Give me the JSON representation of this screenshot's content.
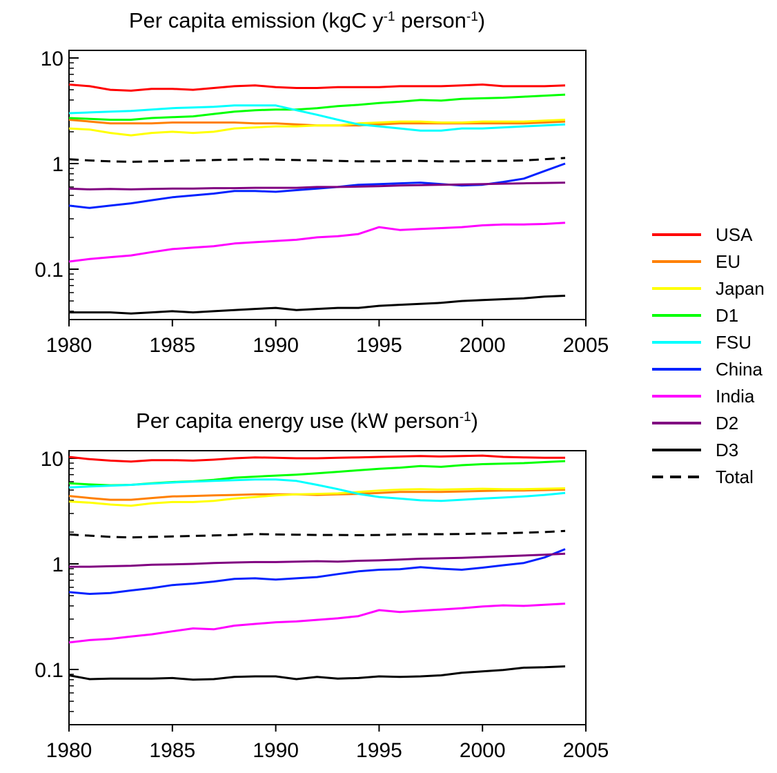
{
  "chart_data": [
    {
      "type": "line",
      "title_prefix": "Per capita emission (kgC y",
      "title_sup1": "-1",
      "title_mid": " person",
      "title_sup2": "-1",
      "title_suffix": ")",
      "y_scale": "log",
      "xlim": [
        1980,
        2005
      ],
      "ylim": [
        0.03,
        12
      ],
      "x_ticks": [
        "1980",
        "1985",
        "1990",
        "1995",
        "2000",
        "2005"
      ],
      "y_ticks": [
        "10",
        "1",
        "0.1"
      ],
      "grid": false,
      "x": [
        1980,
        1981,
        1982,
        1983,
        1984,
        1985,
        1986,
        1987,
        1988,
        1989,
        1990,
        1991,
        1992,
        1993,
        1994,
        1995,
        1996,
        1997,
        1998,
        1999,
        2000,
        2001,
        2002,
        2003,
        2004
      ],
      "series": [
        {
          "name": "USA",
          "color": "#ff0000",
          "dash": false,
          "values": [
            5.6,
            5.4,
            5.0,
            4.9,
            5.1,
            5.1,
            5.0,
            5.2,
            5.4,
            5.5,
            5.3,
            5.2,
            5.2,
            5.3,
            5.3,
            5.3,
            5.4,
            5.4,
            5.4,
            5.5,
            5.6,
            5.4,
            5.4,
            5.4,
            5.5
          ]
        },
        {
          "name": "EU",
          "color": "#ff8000",
          "dash": false,
          "values": [
            2.6,
            2.5,
            2.4,
            2.4,
            2.4,
            2.45,
            2.45,
            2.45,
            2.45,
            2.4,
            2.4,
            2.35,
            2.3,
            2.3,
            2.3,
            2.35,
            2.4,
            2.4,
            2.4,
            2.4,
            2.4,
            2.4,
            2.4,
            2.45,
            2.5
          ]
        },
        {
          "name": "Japan",
          "color": "#ffff00",
          "dash": false,
          "values": [
            2.15,
            2.1,
            1.95,
            1.85,
            1.95,
            2.0,
            1.95,
            2.0,
            2.15,
            2.2,
            2.25,
            2.25,
            2.3,
            2.3,
            2.4,
            2.45,
            2.5,
            2.5,
            2.45,
            2.45,
            2.5,
            2.5,
            2.5,
            2.55,
            2.6
          ]
        },
        {
          "name": "D1",
          "color": "#00ff00",
          "dash": false,
          "values": [
            2.7,
            2.65,
            2.6,
            2.6,
            2.7,
            2.75,
            2.8,
            2.95,
            3.1,
            3.2,
            3.25,
            3.25,
            3.35,
            3.5,
            3.6,
            3.75,
            3.85,
            4.0,
            3.95,
            4.1,
            4.15,
            4.2,
            4.3,
            4.4,
            4.5
          ]
        },
        {
          "name": "FSU",
          "color": "#00ffff",
          "dash": false,
          "values": [
            3.0,
            3.05,
            3.1,
            3.15,
            3.25,
            3.35,
            3.4,
            3.45,
            3.55,
            3.55,
            3.55,
            3.2,
            2.9,
            2.6,
            2.35,
            2.25,
            2.15,
            2.05,
            2.05,
            2.15,
            2.15,
            2.2,
            2.25,
            2.3,
            2.35
          ]
        },
        {
          "name": "China",
          "color": "#0022ff",
          "dash": false,
          "values": [
            0.4,
            0.38,
            0.4,
            0.42,
            0.45,
            0.48,
            0.5,
            0.52,
            0.55,
            0.55,
            0.54,
            0.56,
            0.58,
            0.6,
            0.63,
            0.64,
            0.65,
            0.66,
            0.64,
            0.62,
            0.63,
            0.67,
            0.72,
            0.85,
            1.0
          ]
        },
        {
          "name": "India",
          "color": "#ff00ff",
          "dash": false,
          "values": [
            0.118,
            0.125,
            0.13,
            0.135,
            0.145,
            0.155,
            0.16,
            0.165,
            0.175,
            0.18,
            0.185,
            0.19,
            0.2,
            0.205,
            0.215,
            0.25,
            0.235,
            0.24,
            0.245,
            0.25,
            0.26,
            0.265,
            0.265,
            0.268,
            0.275
          ]
        },
        {
          "name": "D2",
          "color": "#800080",
          "dash": false,
          "values": [
            0.58,
            0.57,
            0.575,
            0.57,
            0.575,
            0.58,
            0.58,
            0.585,
            0.585,
            0.59,
            0.59,
            0.59,
            0.6,
            0.6,
            0.605,
            0.61,
            0.62,
            0.625,
            0.63,
            0.635,
            0.64,
            0.645,
            0.65,
            0.655,
            0.66
          ]
        },
        {
          "name": "D3",
          "color": "#000000",
          "dash": false,
          "values": [
            0.039,
            0.039,
            0.039,
            0.038,
            0.039,
            0.04,
            0.039,
            0.04,
            0.041,
            0.042,
            0.043,
            0.041,
            0.042,
            0.043,
            0.043,
            0.045,
            0.046,
            0.047,
            0.048,
            0.05,
            0.051,
            0.052,
            0.053,
            0.055,
            0.056
          ]
        },
        {
          "name": "Total",
          "color": "#000000",
          "dash": true,
          "values": [
            1.1,
            1.07,
            1.05,
            1.04,
            1.05,
            1.06,
            1.07,
            1.08,
            1.09,
            1.1,
            1.09,
            1.08,
            1.07,
            1.06,
            1.05,
            1.05,
            1.06,
            1.06,
            1.05,
            1.05,
            1.06,
            1.06,
            1.07,
            1.1,
            1.13
          ]
        }
      ]
    },
    {
      "type": "line",
      "title_prefix": "Per capita energy use (kW person",
      "title_sup1": "-1",
      "title_mid": "",
      "title_sup2": "",
      "title_suffix": ")",
      "y_scale": "log",
      "xlim": [
        1980,
        2005
      ],
      "ylim": [
        0.03,
        12
      ],
      "x_ticks": [
        "1980",
        "1985",
        "1990",
        "1995",
        "2000",
        "2005"
      ],
      "y_ticks": [
        "10",
        "1",
        "0.1"
      ],
      "grid": false,
      "x": [
        1980,
        1981,
        1982,
        1983,
        1984,
        1985,
        1986,
        1987,
        1988,
        1989,
        1990,
        1991,
        1992,
        1993,
        1994,
        1995,
        1996,
        1997,
        1998,
        1999,
        2000,
        2001,
        2002,
        2003,
        2004
      ],
      "series": [
        {
          "name": "USA",
          "color": "#ff0000",
          "dash": false,
          "values": [
            10.3,
            9.8,
            9.5,
            9.3,
            9.6,
            9.6,
            9.5,
            9.7,
            10.0,
            10.2,
            10.1,
            10.0,
            10.0,
            10.1,
            10.2,
            10.3,
            10.4,
            10.5,
            10.4,
            10.5,
            10.6,
            10.3,
            10.2,
            10.1,
            10.1
          ]
        },
        {
          "name": "EU",
          "color": "#ff8000",
          "dash": false,
          "values": [
            4.4,
            4.2,
            4.05,
            4.05,
            4.2,
            4.35,
            4.4,
            4.45,
            4.5,
            4.55,
            4.55,
            4.55,
            4.5,
            4.55,
            4.6,
            4.7,
            4.8,
            4.8,
            4.8,
            4.85,
            4.9,
            4.95,
            4.95,
            5.0,
            5.05
          ]
        },
        {
          "name": "Japan",
          "color": "#ffff00",
          "dash": false,
          "values": [
            3.9,
            3.8,
            3.65,
            3.55,
            3.75,
            3.85,
            3.85,
            3.95,
            4.15,
            4.3,
            4.45,
            4.55,
            4.6,
            4.65,
            4.8,
            4.95,
            5.05,
            5.1,
            5.05,
            5.1,
            5.15,
            5.1,
            5.1,
            5.15,
            5.2
          ]
        },
        {
          "name": "D1",
          "color": "#00ff00",
          "dash": false,
          "values": [
            5.8,
            5.65,
            5.55,
            5.6,
            5.8,
            5.95,
            6.05,
            6.25,
            6.55,
            6.7,
            6.85,
            7.0,
            7.2,
            7.45,
            7.7,
            7.95,
            8.15,
            8.45,
            8.3,
            8.6,
            8.8,
            8.9,
            9.0,
            9.2,
            9.4
          ]
        },
        {
          "name": "FSU",
          "color": "#00ffff",
          "dash": false,
          "values": [
            5.3,
            5.4,
            5.5,
            5.6,
            5.75,
            5.9,
            6.0,
            6.1,
            6.2,
            6.3,
            6.3,
            6.1,
            5.6,
            5.1,
            4.6,
            4.3,
            4.15,
            4.0,
            3.95,
            4.05,
            4.15,
            4.25,
            4.35,
            4.5,
            4.7
          ]
        },
        {
          "name": "China",
          "color": "#0022ff",
          "dash": false,
          "values": [
            0.54,
            0.52,
            0.53,
            0.56,
            0.59,
            0.63,
            0.65,
            0.68,
            0.72,
            0.73,
            0.71,
            0.73,
            0.75,
            0.8,
            0.85,
            0.88,
            0.89,
            0.93,
            0.9,
            0.88,
            0.92,
            0.97,
            1.02,
            1.15,
            1.38
          ]
        },
        {
          "name": "India",
          "color": "#ff00ff",
          "dash": false,
          "values": [
            0.18,
            0.19,
            0.195,
            0.205,
            0.215,
            0.23,
            0.245,
            0.24,
            0.26,
            0.27,
            0.28,
            0.285,
            0.295,
            0.305,
            0.32,
            0.365,
            0.35,
            0.36,
            0.37,
            0.38,
            0.395,
            0.405,
            0.4,
            0.41,
            0.42
          ]
        },
        {
          "name": "D2",
          "color": "#800080",
          "dash": false,
          "values": [
            0.94,
            0.94,
            0.95,
            0.96,
            0.98,
            0.99,
            1.0,
            1.02,
            1.03,
            1.04,
            1.04,
            1.05,
            1.06,
            1.05,
            1.07,
            1.08,
            1.1,
            1.12,
            1.13,
            1.14,
            1.16,
            1.18,
            1.2,
            1.22,
            1.25
          ]
        },
        {
          "name": "D3",
          "color": "#000000",
          "dash": false,
          "values": [
            0.088,
            0.081,
            0.082,
            0.082,
            0.082,
            0.083,
            0.08,
            0.081,
            0.085,
            0.086,
            0.086,
            0.081,
            0.085,
            0.082,
            0.083,
            0.086,
            0.085,
            0.086,
            0.088,
            0.093,
            0.096,
            0.099,
            0.104,
            0.105,
            0.107
          ]
        },
        {
          "name": "Total",
          "color": "#000000",
          "dash": true,
          "values": [
            1.9,
            1.85,
            1.8,
            1.78,
            1.8,
            1.82,
            1.84,
            1.86,
            1.88,
            1.92,
            1.9,
            1.89,
            1.88,
            1.88,
            1.87,
            1.88,
            1.9,
            1.91,
            1.91,
            1.92,
            1.94,
            1.95,
            1.97,
            2.0,
            2.05
          ]
        }
      ]
    }
  ],
  "legend": [
    {
      "label": "USA",
      "color": "#ff0000",
      "dash": false
    },
    {
      "label": "EU",
      "color": "#ff8000",
      "dash": false
    },
    {
      "label": "Japan",
      "color": "#ffff00",
      "dash": false
    },
    {
      "label": "D1",
      "color": "#00ff00",
      "dash": false
    },
    {
      "label": "FSU",
      "color": "#00ffff",
      "dash": false
    },
    {
      "label": "China",
      "color": "#0022ff",
      "dash": false
    },
    {
      "label": "India",
      "color": "#ff00ff",
      "dash": false
    },
    {
      "label": "D2",
      "color": "#800080",
      "dash": false
    },
    {
      "label": "D3",
      "color": "#000000",
      "dash": false
    },
    {
      "label": "Total",
      "color": "#000000",
      "dash": true
    }
  ]
}
